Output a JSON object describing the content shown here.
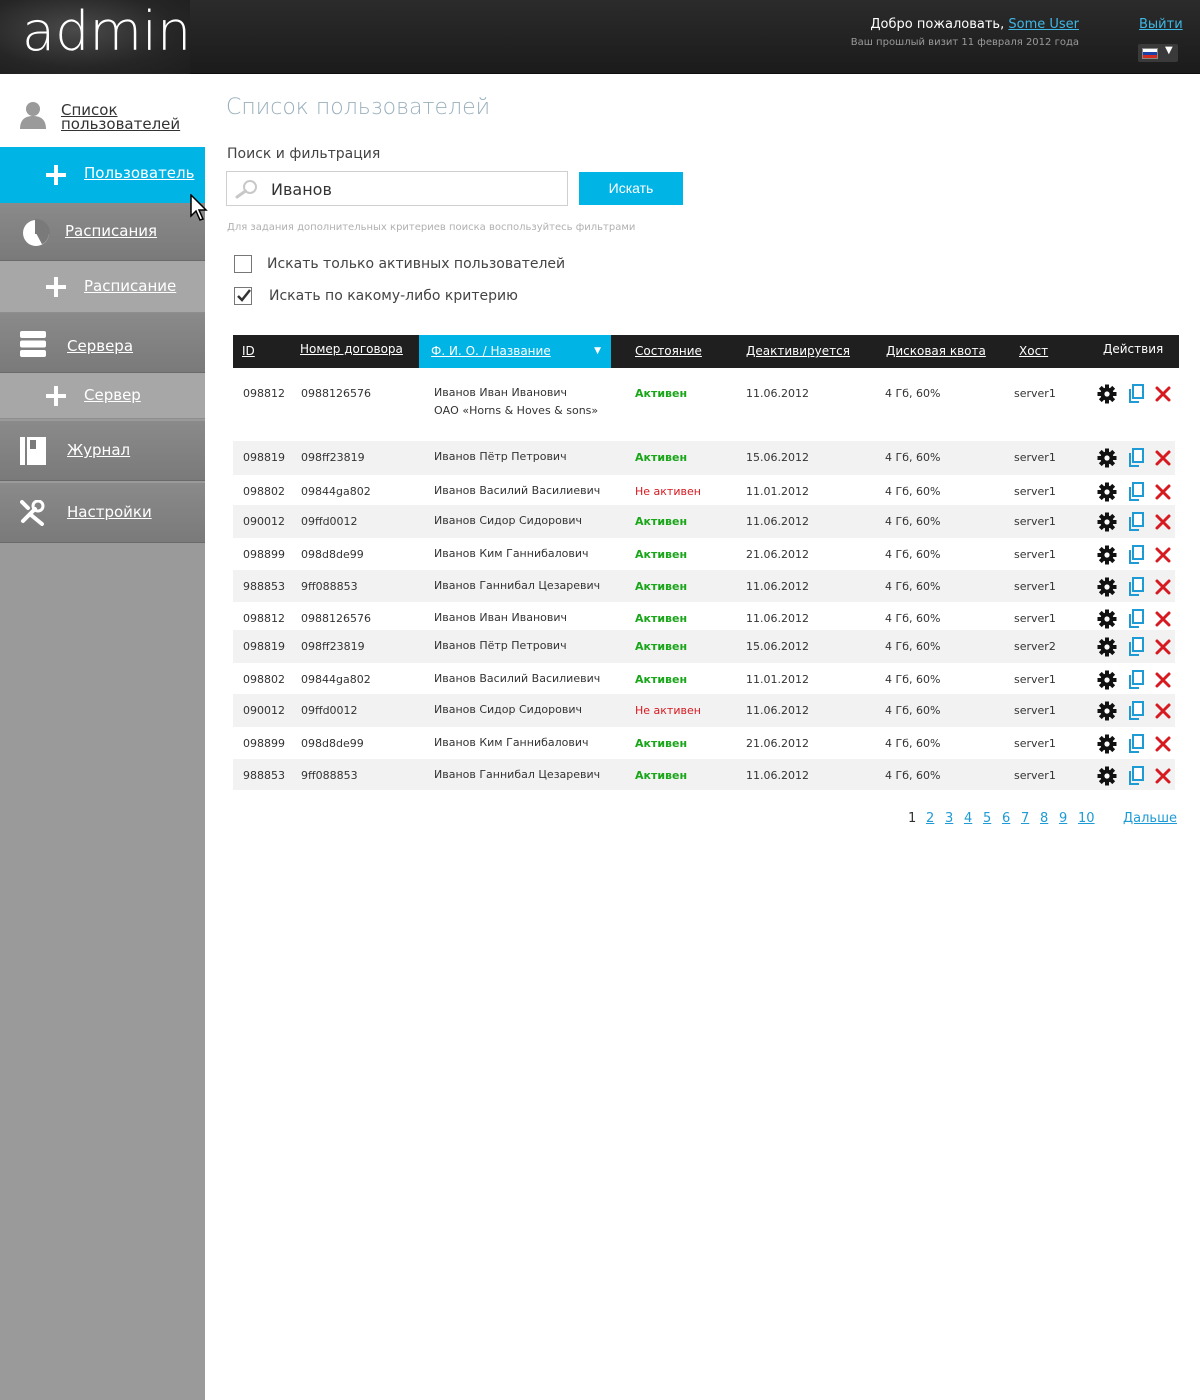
{
  "header": {
    "logo": "admin",
    "welcome_prefix": "Добро пожаловать,",
    "user_name": "Some User",
    "last_visit": "Ваш прошлый визит 11 февраля 2012 года",
    "logout": "Выйти",
    "language_arrow": "▼"
  },
  "sidebar": {
    "users_line1": "Список",
    "users_line2": "пользователей",
    "add_user": "Пользователь",
    "schedules": "Расписания",
    "add_schedule": "Расписание",
    "servers": "Сервера",
    "add_server": "Сервер",
    "journal": "Журнал",
    "settings": "Настройки"
  },
  "main": {
    "title": "Список пользователей",
    "search_heading": "Поиск и фильтрация",
    "search_value": "Иванов",
    "search_button": "Искать",
    "hint": "Для задания дополнительных критериев поиска воспользуйтесь фильтрами",
    "checkbox_active_label": "Искать только активных пользователей",
    "checkbox_active_checked": false,
    "checkbox_criteria_label": "Искать по какому-либо критерию",
    "checkbox_criteria_checked": true
  },
  "table": {
    "headers": {
      "id": "ID",
      "contract": "Номер договора",
      "name": "Ф. И. О. / Название",
      "sort_arrow": "▼",
      "status": "Состояние",
      "deactivates": "Деактивируется",
      "quota": "Дисковая квота",
      "host": "Хост",
      "actions": "Действия"
    },
    "rows": [
      {
        "id": "098812",
        "contract": "0988126576",
        "name": "Иванов Иван Иванович",
        "org": "ОАО «Horns & Hoves & sons»",
        "status": "Активен",
        "active": true,
        "deactivates": "11.06.2012",
        "quota": "4 Гб, 60%",
        "host": "server1"
      },
      {
        "id": "098819",
        "contract": "098ff23819",
        "name": "Иванов Пётр Петрович",
        "org": "",
        "status": "Активен",
        "active": true,
        "deactivates": "15.06.2012",
        "quota": "4 Гб, 60%",
        "host": "server1"
      },
      {
        "id": "098802",
        "contract": "09844ga802",
        "name": "Иванов Василий Василиевич",
        "org": "",
        "status": "Не активен",
        "active": false,
        "deactivates": "11.01.2012",
        "quota": "4 Гб, 60%",
        "host": "server1"
      },
      {
        "id": "090012",
        "contract": "09ffd0012",
        "name": "Иванов Сидор Сидорович",
        "org": "",
        "status": "Активен",
        "active": true,
        "deactivates": "11.06.2012",
        "quota": "4 Гб, 60%",
        "host": "server1"
      },
      {
        "id": "098899",
        "contract": "098d8de99",
        "name": "Иванов Ким Ганнибалович",
        "org": "",
        "status": "Активен",
        "active": true,
        "deactivates": "21.06.2012",
        "quota": "4 Гб, 60%",
        "host": "server1"
      },
      {
        "id": "988853",
        "contract": "9ff088853",
        "name": "Иванов Ганнибал Цезаревич",
        "org": "",
        "status": "Активен",
        "active": true,
        "deactivates": "11.06.2012",
        "quota": "4 Гб, 60%",
        "host": "server1"
      },
      {
        "id": "098812",
        "contract": "0988126576",
        "name": "Иванов Иван Иванович",
        "org": "",
        "status": "Активен",
        "active": true,
        "deactivates": "11.06.2012",
        "quota": "4 Гб, 60%",
        "host": "server1"
      },
      {
        "id": "098819",
        "contract": "098ff23819",
        "name": "Иванов Пётр Петрович",
        "org": "",
        "status": "Активен",
        "active": true,
        "deactivates": "15.06.2012",
        "quota": "4 Гб, 60%",
        "host": "server2"
      },
      {
        "id": "098802",
        "contract": "09844ga802",
        "name": "Иванов Василий Василиевич",
        "org": "",
        "status": "Активен",
        "active": true,
        "deactivates": "11.01.2012",
        "quota": "4 Гб, 60%",
        "host": "server1"
      },
      {
        "id": "090012",
        "contract": "09ffd0012",
        "name": "Иванов Сидор Сидорович",
        "org": "",
        "status": "Не активен",
        "active": false,
        "deactivates": "11.06.2012",
        "quota": "4 Гб, 60%",
        "host": "server1"
      },
      {
        "id": "098899",
        "contract": "098d8de99",
        "name": "Иванов Ким Ганнибалович",
        "org": "",
        "status": "Активен",
        "active": true,
        "deactivates": "21.06.2012",
        "quota": "4 Гб, 60%",
        "host": "server1"
      },
      {
        "id": "988853",
        "contract": "9ff088853",
        "name": "Иванов Ганнибал Цезаревич",
        "org": "",
        "status": "Активен",
        "active": true,
        "deactivates": "11.06.2012",
        "quota": "4 Гб, 60%",
        "host": "server1"
      }
    ]
  },
  "pagination": {
    "current": "1",
    "pages": [
      "2",
      "3",
      "4",
      "5",
      "6",
      "7",
      "8",
      "9",
      "10"
    ],
    "next": "Дальше"
  },
  "icons": {
    "action_edit": "gear-icon",
    "action_copy": "copy-icon",
    "action_delete": "delete-icon"
  },
  "colors": {
    "accent": "#00b4e6",
    "link": "#1e9bd4",
    "active": "#19a619",
    "inactive": "#d71920",
    "header_bg": "#222222",
    "sidebar_bg": "#9a9a9a"
  }
}
